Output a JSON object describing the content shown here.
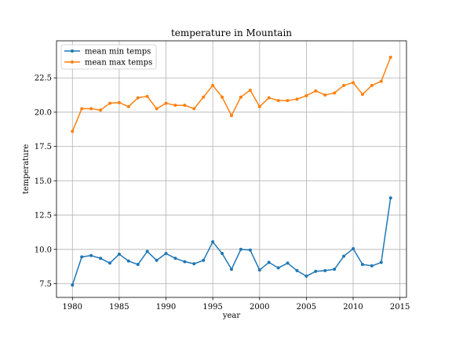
{
  "chart_data": {
    "type": "line",
    "title": "temperature in Mountain",
    "xlabel": "year",
    "ylabel": "temperature",
    "xlim": [
      1978.3,
      2015.7
    ],
    "ylim": [
      6.5,
      25.2
    ],
    "xticks": [
      1980,
      1985,
      1990,
      1995,
      2000,
      2005,
      2010,
      2015
    ],
    "yticks": [
      7.5,
      10.0,
      12.5,
      15.0,
      17.5,
      20.0,
      22.5
    ],
    "grid": true,
    "legend_position": "upper-left",
    "x": [
      1980,
      1981,
      1982,
      1983,
      1984,
      1985,
      1986,
      1987,
      1988,
      1989,
      1990,
      1991,
      1992,
      1993,
      1994,
      1995,
      1996,
      1997,
      1998,
      1999,
      2000,
      2001,
      2002,
      2003,
      2004,
      2005,
      2006,
      2007,
      2008,
      2009,
      2010,
      2011,
      2012,
      2013,
      2014
    ],
    "series": [
      {
        "name": "mean min temps",
        "color": "#1f77b4",
        "values": [
          7.4,
          9.45,
          9.55,
          9.35,
          9.0,
          9.65,
          9.15,
          8.9,
          9.85,
          9.2,
          9.7,
          9.35,
          9.1,
          8.95,
          9.2,
          10.55,
          9.7,
          8.55,
          10.0,
          9.95,
          8.5,
          9.05,
          8.65,
          9.0,
          8.45,
          8.05,
          8.4,
          8.45,
          8.55,
          9.5,
          10.05,
          8.9,
          8.8,
          9.05,
          13.75
        ]
      },
      {
        "name": "mean max temps",
        "color": "#ff7f0e",
        "values": [
          18.6,
          20.25,
          20.25,
          20.15,
          20.65,
          20.7,
          20.4,
          21.05,
          21.15,
          20.25,
          20.65,
          20.5,
          20.5,
          20.25,
          21.1,
          21.95,
          21.1,
          19.75,
          21.1,
          21.6,
          20.4,
          21.05,
          20.85,
          20.85,
          20.95,
          21.2,
          21.55,
          21.25,
          21.4,
          21.95,
          22.15,
          21.3,
          21.95,
          22.25,
          24.0
        ]
      }
    ]
  }
}
